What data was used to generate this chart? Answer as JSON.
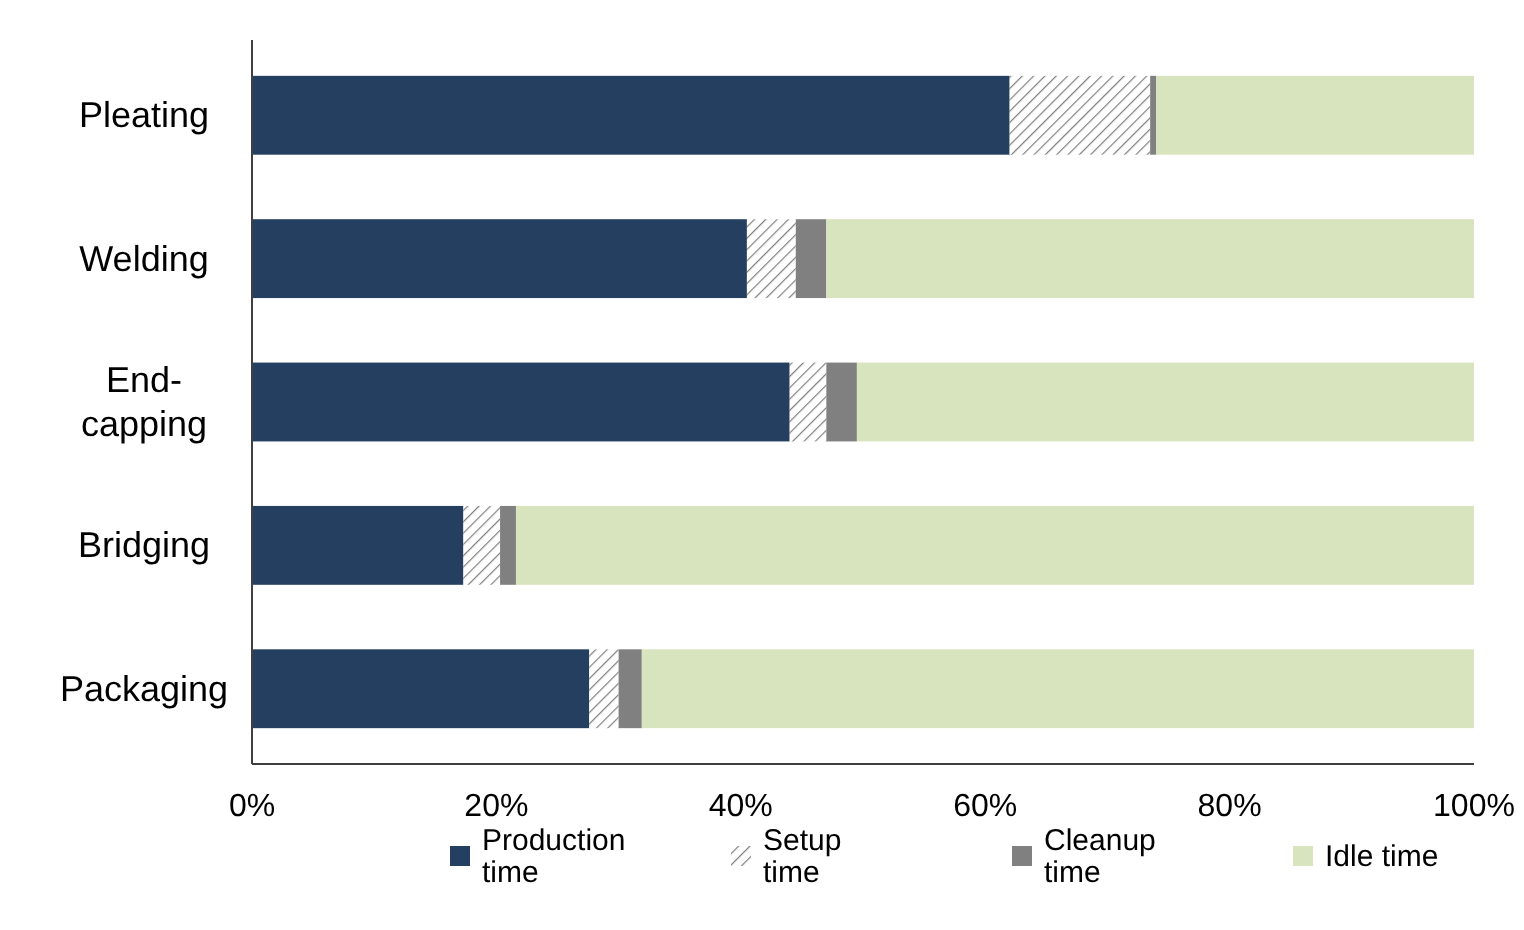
{
  "chart_data": {
    "type": "bar",
    "orientation": "horizontal",
    "stacked": true,
    "categories": [
      "Pleating",
      "Welding",
      "End-capping",
      "Bridging",
      "Packaging"
    ],
    "series": [
      {
        "name": "Production time",
        "color": "#243f60",
        "values": [
          62,
          40.5,
          44,
          17.3,
          27.6
        ]
      },
      {
        "name": "Setup time",
        "color": "#7f7f7f",
        "values": [
          11.5,
          4,
          3,
          3,
          2.4
        ]
      },
      {
        "name": "Cleanup time",
        "color": "#808080",
        "values": [
          0.5,
          2.5,
          2.5,
          1.3,
          1.9
        ]
      },
      {
        "name": "Idle time",
        "color": "#d7e4bd",
        "values": [
          26,
          53,
          50.5,
          78.4,
          68.1
        ]
      }
    ],
    "xlim": [
      0,
      100
    ],
    "xticks": [
      {
        "value": 0,
        "label": "0%"
      },
      {
        "value": 20,
        "label": "20%"
      },
      {
        "value": 40,
        "label": "40%"
      },
      {
        "value": 60,
        "label": "60%"
      },
      {
        "value": 80,
        "label": "80%"
      },
      {
        "value": 100,
        "label": "100%"
      }
    ],
    "grid": false,
    "legend": "bottom"
  }
}
